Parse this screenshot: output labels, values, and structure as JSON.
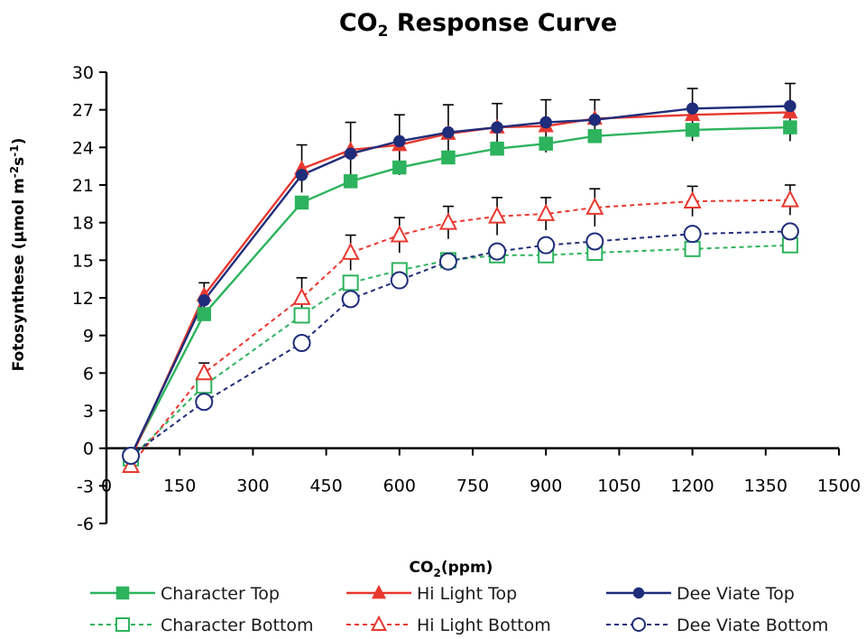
{
  "chart_data": {
    "type": "line",
    "title_main": "CO",
    "title_sub": "2",
    "title_rest": " Response Curve",
    "xlabel_main": "CO",
    "xlabel_sub": "2",
    "xlabel_rest": "(ppm)",
    "ylabel_a": "Fotosynthese (µmol m",
    "ylabel_sup1": "-2",
    "ylabel_b": "s",
    "ylabel_sup2": "-1",
    "ylabel_c": ")",
    "xlim": [
      0,
      1500
    ],
    "ylim": [
      -6,
      30
    ],
    "xticks": [
      0,
      150,
      300,
      450,
      600,
      750,
      900,
      1050,
      1200,
      1350,
      1500
    ],
    "yticks": [
      -6,
      -3,
      0,
      3,
      6,
      9,
      12,
      15,
      18,
      21,
      24,
      27,
      30
    ],
    "grid": false,
    "legend_position": "bottom",
    "x": [
      50,
      200,
      400,
      500,
      600,
      700,
      800,
      900,
      1000,
      1200,
      1400
    ],
    "series": [
      {
        "name": "Character Top",
        "color": "#2db35d",
        "marker": "square",
        "filled": true,
        "dashed": false,
        "values": [
          -0.6,
          10.7,
          19.6,
          21.3,
          22.4,
          23.2,
          23.9,
          24.3,
          24.9,
          25.4,
          25.6
        ],
        "errors": [
          null,
          null,
          null,
          null,
          null,
          null,
          null,
          null,
          null,
          null,
          null
        ]
      },
      {
        "name": "Hi Light Top",
        "color": "#e8382f",
        "marker": "triangle",
        "filled": true,
        "dashed": false,
        "values": [
          -0.8,
          12.2,
          22.3,
          23.8,
          24.2,
          25.1,
          25.6,
          25.7,
          26.3,
          26.6,
          26.8
        ],
        "errors": [
          null,
          1.0,
          1.9,
          2.2,
          2.4,
          2.3,
          1.9,
          2.1,
          1.5,
          2.1,
          2.3
        ]
      },
      {
        "name": "Dee Viate Top",
        "color": "#1f2d7a",
        "marker": "circle",
        "filled": true,
        "dashed": false,
        "values": [
          -0.6,
          11.8,
          21.8,
          23.5,
          24.5,
          25.2,
          25.6,
          26.0,
          26.2,
          27.1,
          27.3
        ],
        "errors": [
          null,
          null,
          null,
          null,
          null,
          null,
          null,
          null,
          null,
          null,
          null
        ]
      },
      {
        "name": "Character Bottom",
        "color": "#2db35d",
        "marker": "square",
        "filled": false,
        "dashed": true,
        "values": [
          -0.8,
          5.0,
          10.6,
          13.2,
          14.2,
          15.0,
          15.4,
          15.4,
          15.6,
          15.9,
          16.2
        ],
        "errors": [
          null,
          null,
          null,
          null,
          null,
          null,
          null,
          null,
          null,
          null,
          null
        ]
      },
      {
        "name": "Hi Light Bottom",
        "color": "#e8382f",
        "marker": "triangle",
        "filled": false,
        "dashed": true,
        "values": [
          -1.4,
          6.0,
          12.0,
          15.6,
          17.0,
          18.0,
          18.5,
          18.7,
          19.2,
          19.7,
          19.8
        ],
        "errors": [
          null,
          0.8,
          1.6,
          1.4,
          1.4,
          1.3,
          1.5,
          1.3,
          1.5,
          1.2,
          1.2
        ]
      },
      {
        "name": "Dee Viate Bottom",
        "color": "#1f2d7a",
        "marker": "circle",
        "filled": false,
        "dashed": true,
        "values": [
          -0.6,
          3.7,
          8.4,
          11.9,
          13.4,
          14.9,
          15.7,
          16.2,
          16.5,
          17.1,
          17.3
        ],
        "errors": [
          null,
          null,
          null,
          null,
          null,
          null,
          null,
          null,
          null,
          null,
          null
        ]
      }
    ]
  }
}
